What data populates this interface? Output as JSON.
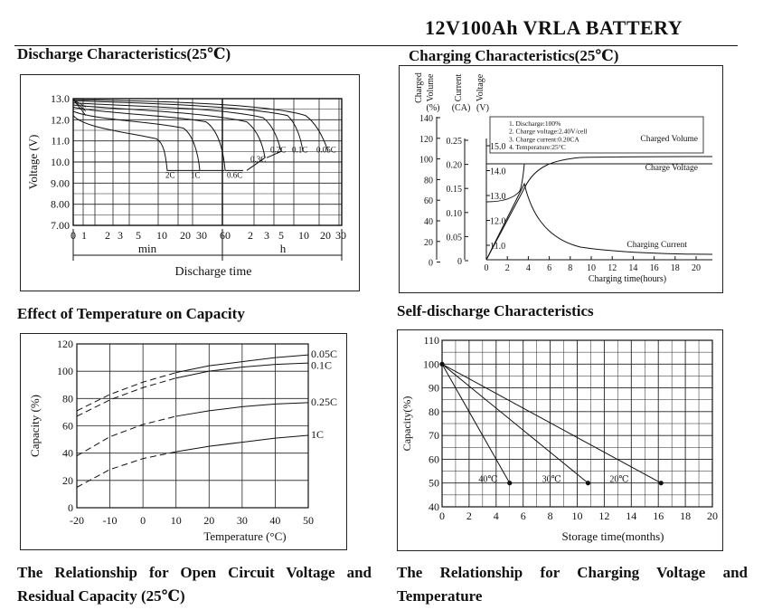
{
  "header": {
    "title": "12V100Ah VRLA BATTERY"
  },
  "sections": {
    "discharge": "Discharge Characteristics(25℃)",
    "charging": "Charging Characteristics(25℃)",
    "temp_capacity": "Effect of Temperature on Capacity",
    "self_discharge": "Self-discharge Characteristics",
    "ocv": "The Relationship for Open Circuit Voltage and Residual Capacity (25℃)",
    "charge_voltage_temp": "The Relationship for Charging Voltage and Temperature"
  },
  "chart_data": [
    {
      "id": "discharge",
      "type": "line",
      "title": "Discharge Characteristics(25℃)",
      "ylabel": "Voltage (V)",
      "xlabel": "Discharge time",
      "ylim": [
        7.0,
        13.0
      ],
      "yticks": [
        "13.0",
        "12.0",
        "11.0",
        "10.0",
        "9.00",
        "8.00",
        "7.00"
      ],
      "xticks": [
        "0",
        "1",
        "2",
        "3",
        "5",
        "10",
        "20",
        "30",
        "60",
        "2",
        "3",
        "5",
        "10",
        "20",
        "30"
      ],
      "x_units": [
        "min",
        "h"
      ],
      "series": [
        {
          "name": "2C",
          "end_voltage": 9.6
        },
        {
          "name": "1C",
          "end_voltage": 9.6
        },
        {
          "name": "0.6C",
          "end_voltage": 9.6
        },
        {
          "name": "0.3C",
          "end_voltage": 10.2
        },
        {
          "name": "0.2C",
          "end_voltage": 10.5
        },
        {
          "name": "0.1C",
          "end_voltage": 10.5
        },
        {
          "name": "0.05C",
          "end_voltage": 10.5
        }
      ]
    },
    {
      "id": "charging",
      "type": "line",
      "title": "Charging Characteristics(25℃)",
      "xlabel": "Charging time(hours)",
      "xlim": [
        0,
        22
      ],
      "xticks": [
        "0",
        "2",
        "4",
        "6",
        "8",
        "10",
        "12",
        "14",
        "16",
        "18",
        "20"
      ],
      "axes": [
        {
          "label": "Charged Volume",
          "unit": "(%)",
          "ticks": [
            "140",
            "120",
            "100",
            "80",
            "60",
            "40",
            "20",
            "0"
          ]
        },
        {
          "label": "Current",
          "unit": "(CA)",
          "ticks": [
            "0.25",
            "0.20",
            "0.15",
            "0.10",
            "0.05",
            "0"
          ]
        },
        {
          "label": "Voltage",
          "unit": "(V)",
          "ticks": [
            "15.0",
            "14.0",
            "13.0",
            "12.0",
            "11.0"
          ]
        }
      ],
      "notes": [
        "1. Discharge:100%",
        "2. Charge voltage:2.40V/cell",
        "3. Charge current:0.20CA",
        "4. Temperature:25°C"
      ],
      "series": [
        {
          "name": "Charged Volume"
        },
        {
          "name": "Charge Voltage"
        },
        {
          "name": "Charging Current"
        }
      ]
    },
    {
      "id": "temperature",
      "type": "line",
      "title": "Effect of Temperature on Capacity",
      "xlabel": "Temperature (°C)",
      "ylabel": "Capacity (%)",
      "xlim": [
        -20,
        50
      ],
      "ylim": [
        0,
        120
      ],
      "xticks": [
        "-20",
        "-10",
        "0",
        "10",
        "20",
        "30",
        "40",
        "50"
      ],
      "yticks": [
        "120",
        "100",
        "80",
        "60",
        "40",
        "20",
        "0"
      ],
      "x": [
        -20,
        -10,
        0,
        10,
        20,
        30,
        40,
        50
      ],
      "series": [
        {
          "name": "0.05C",
          "values": [
            71,
            83,
            92,
            99,
            104,
            107,
            110,
            112
          ]
        },
        {
          "name": "0.1C",
          "values": [
            67,
            79,
            88,
            95,
            100,
            103,
            105,
            106
          ]
        },
        {
          "name": "0.25C",
          "values": [
            38,
            52,
            61,
            67,
            71,
            74,
            76,
            77
          ]
        },
        {
          "name": "1C",
          "values": [
            15,
            28,
            36,
            41,
            45,
            48,
            51,
            53
          ]
        }
      ]
    },
    {
      "id": "self_discharge",
      "type": "line",
      "title": "Self-discharge Characteristics",
      "xlabel": "Storage time(months)",
      "ylabel": "Capacity(%)",
      "xlim": [
        0,
        20
      ],
      "ylim": [
        40,
        110
      ],
      "xticks": [
        "0",
        "2",
        "4",
        "6",
        "8",
        "10",
        "12",
        "14",
        "16",
        "18",
        "20"
      ],
      "yticks": [
        "110",
        "100",
        "90",
        "80",
        "70",
        "60",
        "50",
        "40"
      ],
      "series": [
        {
          "name": "40℃",
          "x": [
            0,
            5
          ],
          "values": [
            100,
            50
          ]
        },
        {
          "name": "30℃",
          "x": [
            0,
            10.8
          ],
          "values": [
            100,
            50
          ]
        },
        {
          "name": "20℃",
          "x": [
            0,
            16.2
          ],
          "values": [
            100,
            50
          ]
        }
      ]
    }
  ]
}
